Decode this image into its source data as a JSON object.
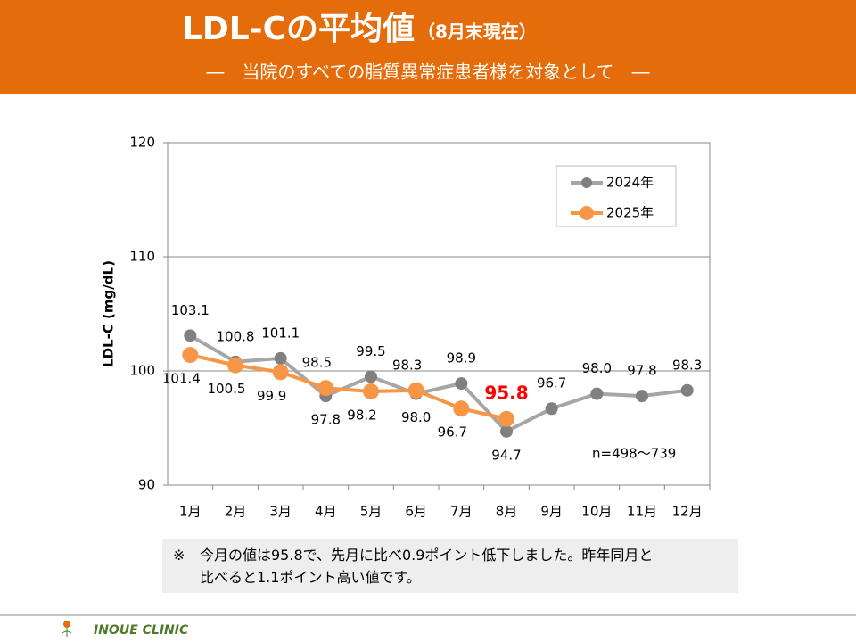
{
  "header": {
    "title": "LDL-Cの平均値",
    "title_suffix": "（8月末現在）",
    "subtitle": "―　当院のすべての脂質異常症患者様を対象として　―"
  },
  "chart_data": {
    "type": "line",
    "ylabel": "LDL-C (mg/dL)",
    "categories": [
      "1月",
      "2月",
      "3月",
      "4月",
      "5月",
      "6月",
      "7月",
      "8月",
      "9月",
      "10月",
      "11月",
      "12月"
    ],
    "series": [
      {
        "name": "2024年",
        "color": "#a6a6a6",
        "marker_color": "#808080",
        "values": [
          103.1,
          100.8,
          101.1,
          97.8,
          99.5,
          98.0,
          98.9,
          94.7,
          96.7,
          98.0,
          97.8,
          98.3
        ],
        "value_labels": [
          "103.1",
          "100.8",
          "101.1",
          "97.8",
          "99.5",
          "98.0",
          "98.9",
          "94.7",
          "96.7",
          "98.0",
          "97.8",
          "98.3"
        ]
      },
      {
        "name": "2025年",
        "color": "#f79646",
        "marker_color": "#f79646",
        "values": [
          101.4,
          100.5,
          99.9,
          98.5,
          98.2,
          98.3,
          96.7,
          95.8,
          null,
          null,
          null,
          null
        ],
        "value_labels": [
          "101.4",
          "100.5",
          "99.9",
          "98.5",
          "98.2",
          "98.3",
          "96.7",
          "95.8",
          null,
          null,
          null,
          null
        ],
        "highlight_index": 7,
        "highlight_color": "#ff0000"
      }
    ],
    "ylim": [
      90,
      120
    ],
    "yticks": [
      90,
      100,
      110,
      120
    ],
    "grid": true,
    "legend": "upper right",
    "annotation": "n=498～739"
  },
  "note": {
    "mark": "※",
    "lines": [
      "今月の値は95.8で、先月に比べ0.9ポイント低下しました。昨年同月と",
      "比べると1.1ポイント高い値です。"
    ]
  },
  "footer": {
    "clinic": "INOUE CLINIC"
  }
}
